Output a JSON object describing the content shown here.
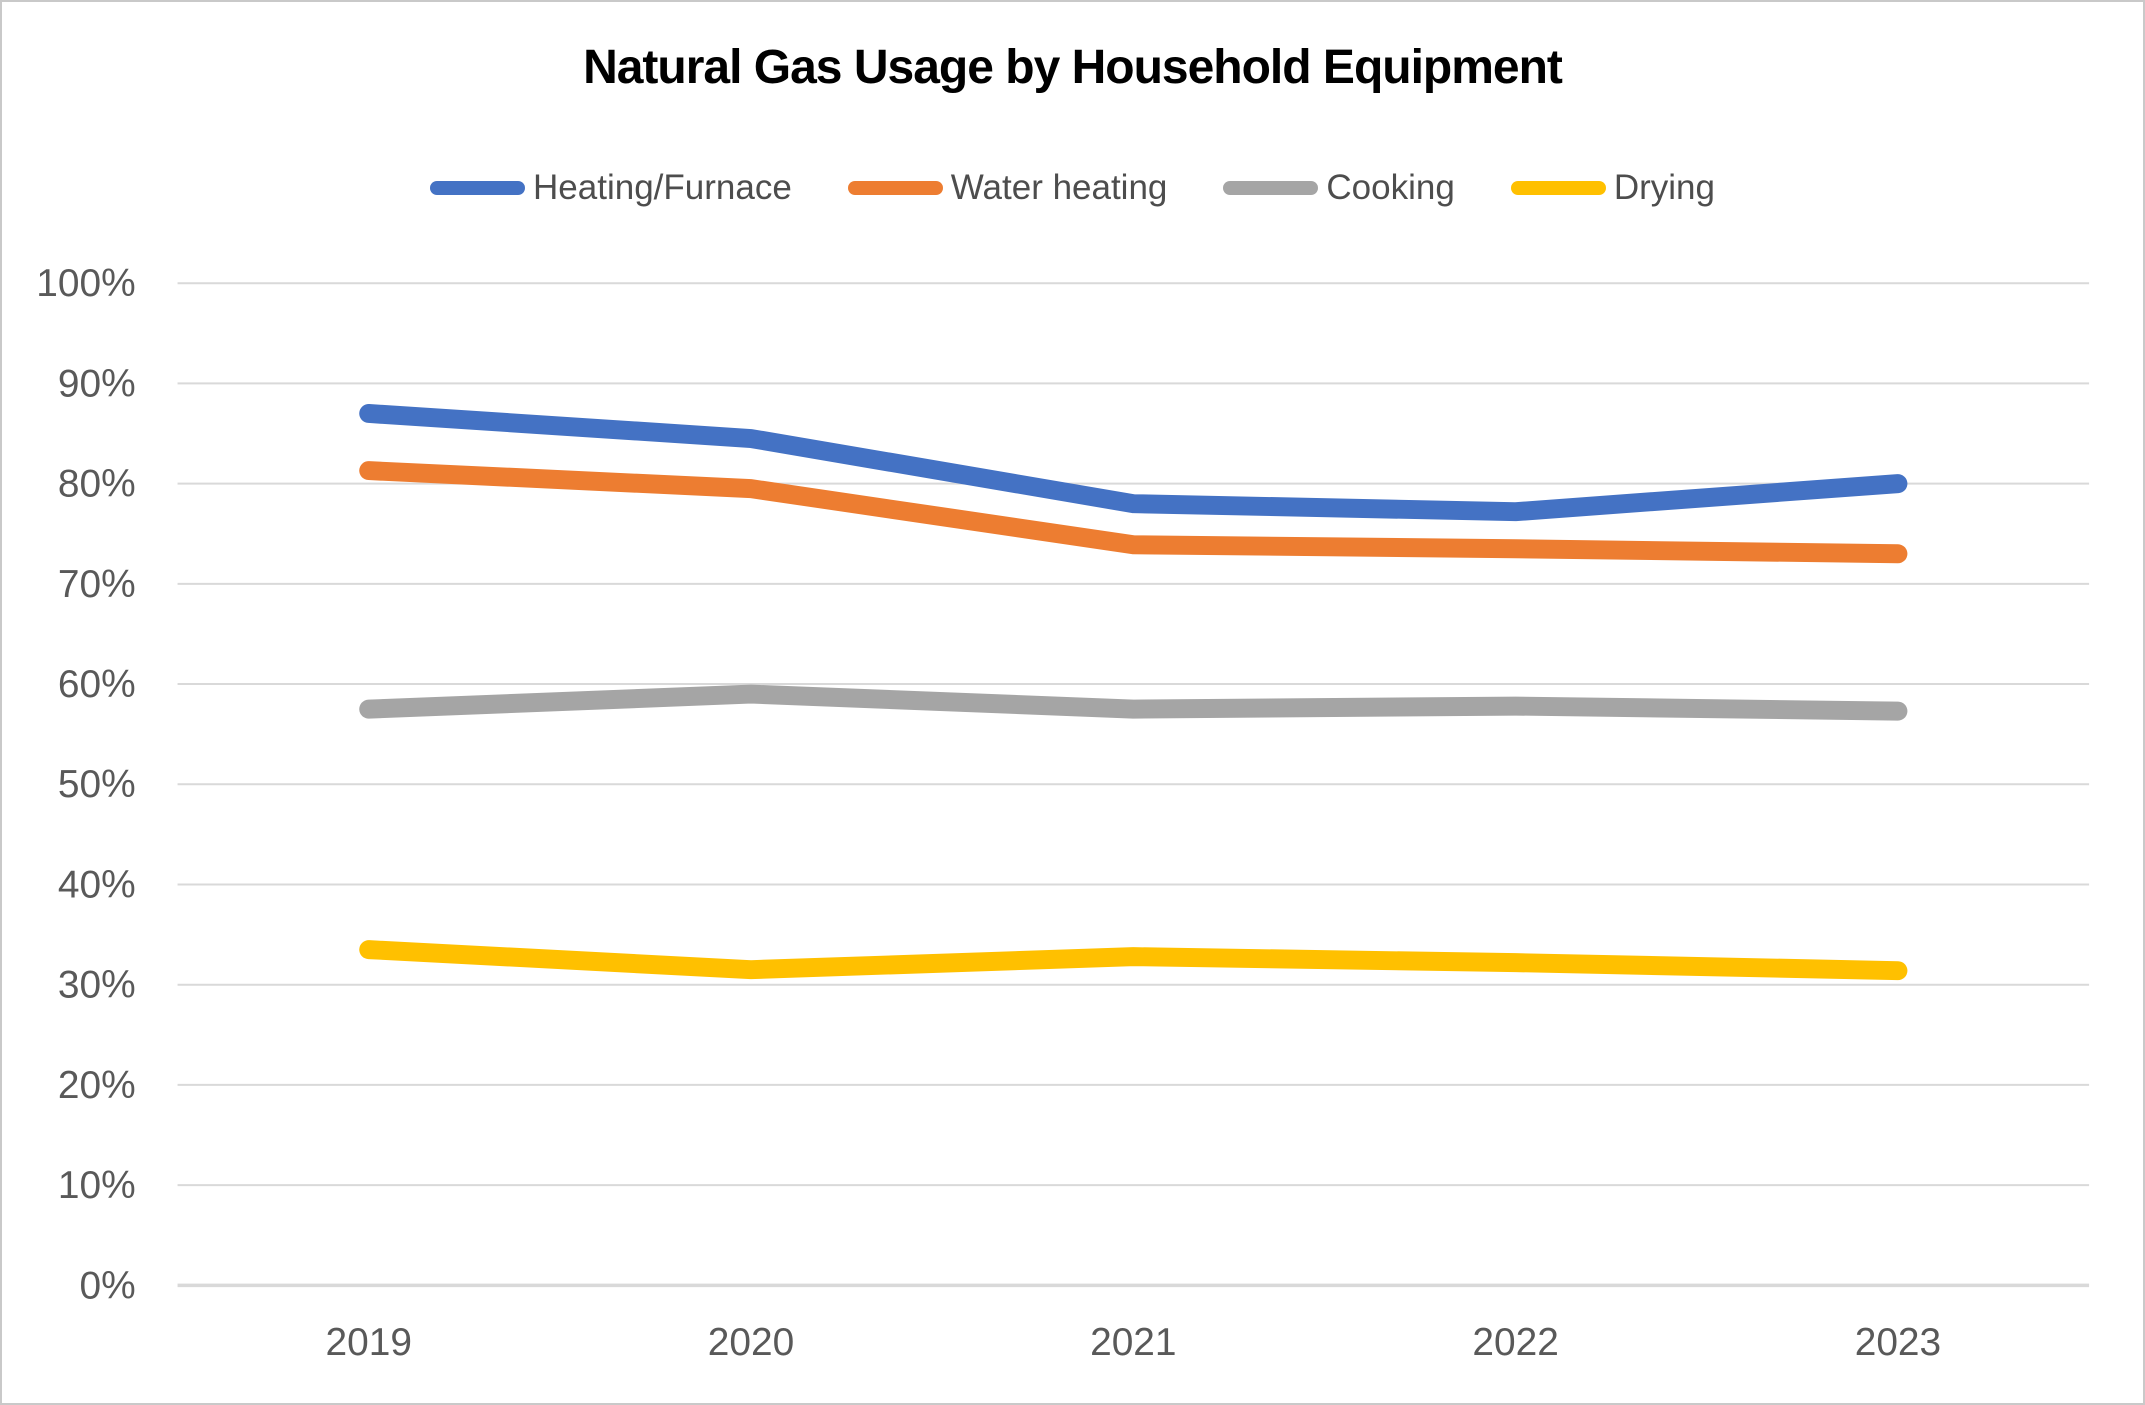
{
  "chart_data": {
    "type": "line",
    "title": "Natural Gas Usage by Household Equipment",
    "x": [
      "2019",
      "2020",
      "2021",
      "2022",
      "2023"
    ],
    "series": [
      {
        "name": "Heating/Furnace",
        "color": "#4472C4",
        "values": [
          87,
          84.5,
          78,
          77.2,
          80
        ]
      },
      {
        "name": "Water heating",
        "color": "#ED7D31",
        "values": [
          81.3,
          79.5,
          73.9,
          73.5,
          73
        ]
      },
      {
        "name": "Cooking",
        "color": "#A5A5A5",
        "values": [
          57.5,
          59,
          57.5,
          57.8,
          57.3
        ]
      },
      {
        "name": "Drying",
        "color": "#FFC000",
        "values": [
          33.5,
          31.5,
          32.8,
          32.2,
          31.4
        ]
      }
    ],
    "ylim": [
      0,
      100
    ],
    "ytick_step": 10,
    "ytick_labels": [
      "0%",
      "10%",
      "20%",
      "30%",
      "40%",
      "50%",
      "60%",
      "70%",
      "80%",
      "90%",
      "100%"
    ],
    "legend_position": "top",
    "grid": "horizontal",
    "gridline_color": "#D9D9D9",
    "axis_label_color": "#595959"
  }
}
